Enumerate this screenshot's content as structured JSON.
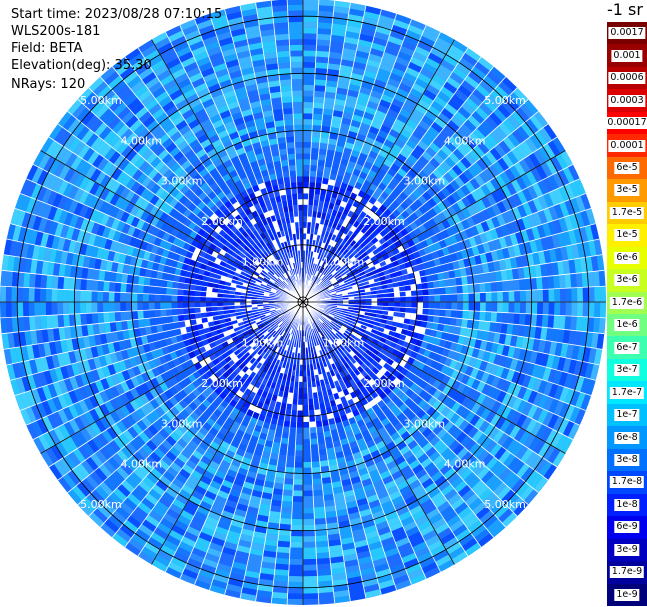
{
  "info": {
    "start_time": "Start time: 2023/08/28 07:10:15",
    "instrument": "WLS200s-181",
    "field": "Field: BETA",
    "elevation": "Elevation(deg): 35.30",
    "nrays": "NRays: 120"
  },
  "colorbar": {
    "title": "-1 sr",
    "labels": [
      "0.0017",
      "0.001",
      "0.0006",
      "0.0003",
      "0.00017",
      "0.0001",
      "6e-5",
      "3e-5",
      "1.7e-5",
      "1e-5",
      "6e-6",
      "3e-6",
      "1.7e-6",
      "1e-6",
      "6e-7",
      "3e-7",
      "1.7e-7",
      "1e-7",
      "6e-8",
      "3e-8",
      "1.7e-8",
      "1e-8",
      "6e-9",
      "3e-9",
      "1.7e-9",
      "1e-9"
    ],
    "colors": [
      "#7a0000",
      "#990000",
      "#b80000",
      "#dd0000",
      "#ff0000",
      "#ff2800",
      "#ff6a00",
      "#ff9a00",
      "#ffcc00",
      "#fff000",
      "#e8ff00",
      "#c8ff1e",
      "#a0ff50",
      "#70ff80",
      "#3cffb0",
      "#10ffe0",
      "#00e8ff",
      "#00c0ff",
      "#0098ff",
      "#0070ff",
      "#0048ff",
      "#0020ff",
      "#0000ee",
      "#0000c0",
      "#00009c",
      "#00007a"
    ]
  },
  "range_rings": {
    "labels": [
      "1.00km",
      "2.00km",
      "3.00km",
      "4.00km",
      "5.00km"
    ],
    "values_km": [
      1,
      2,
      3,
      4,
      5
    ]
  },
  "ppi": {
    "center_marker": "radar-site-marker",
    "max_range_km": 5.3
  }
}
